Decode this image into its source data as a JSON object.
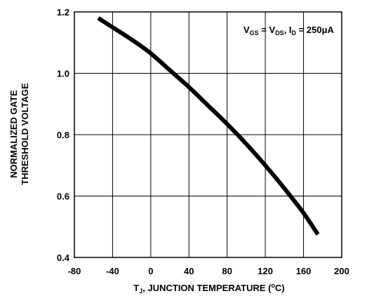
{
  "chart_data": {
    "type": "line",
    "title": "",
    "xlabel": {
      "main": "T",
      "sub": "J",
      "rest": ", JUNCTION TEMPERATURE (",
      "unit_o": "o",
      "unit_c": "C)"
    },
    "ylabel_lines": [
      "NORMALIZED GATE",
      "THRESHOLD VOLTAGE"
    ],
    "xlim": [
      -80,
      200
    ],
    "ylim": [
      0.4,
      1.2
    ],
    "xticks": [
      -80,
      -40,
      0,
      40,
      80,
      120,
      160,
      200
    ],
    "yticks": [
      0.4,
      0.6,
      0.8,
      1.0,
      1.2
    ],
    "xtick_labels": [
      "-80",
      "-40",
      "0",
      "40",
      "80",
      "120",
      "160",
      "200"
    ],
    "ytick_labels": [
      "0.4",
      "0.6",
      "0.8",
      "1.0",
      "1.2"
    ],
    "grid": true,
    "annotation": {
      "v1": "V",
      "v1_sub": "GS",
      "eq1": " = V",
      "v2_sub": "DS",
      "comma": ", I",
      "i_sub": "D",
      "value": " = 250",
      "mu": "μ",
      "unit": "A"
    },
    "series": [
      {
        "x": [
          -55,
          -40,
          -20,
          0,
          20,
          40,
          60,
          80,
          100,
          120,
          140,
          160,
          175
        ],
        "y": [
          1.18,
          1.15,
          1.11,
          1.065,
          1.01,
          0.955,
          0.895,
          0.835,
          0.77,
          0.7,
          0.625,
          0.545,
          0.475
        ]
      }
    ]
  }
}
